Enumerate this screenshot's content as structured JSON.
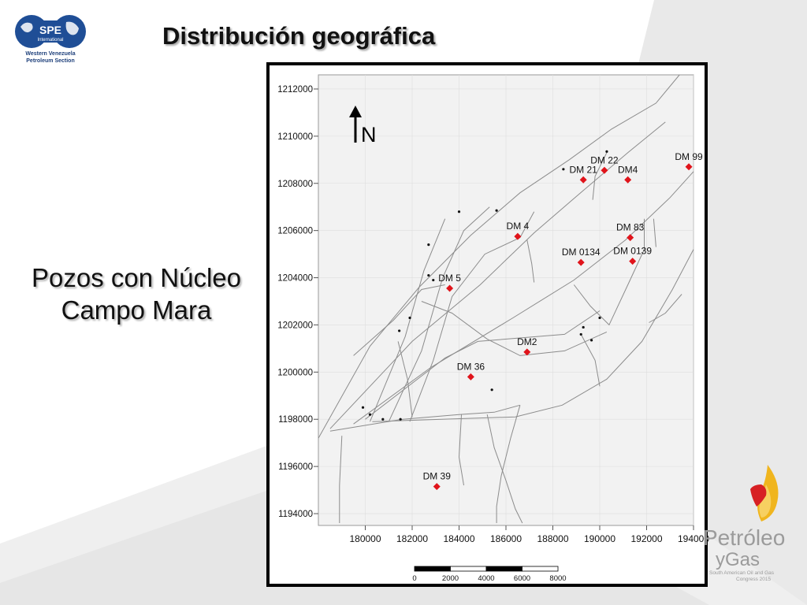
{
  "slide": {
    "title": "Distribución geográfica",
    "subtitle_lines": [
      "Pozos con Núcleo",
      "Campo Mara"
    ]
  },
  "logo_spe": {
    "text": "SPE",
    "sub_text": "International",
    "caption_lines": [
      "Western Venezuela",
      "Petroleum Section"
    ]
  },
  "logo_congress": {
    "line1": "Petróleo",
    "line2": "yGas",
    "caption_lines": [
      "South American Oil and Gas",
      "Congress 2015"
    ]
  },
  "map": {
    "north_label": "N",
    "x_axis_ticks": [
      180000,
      182000,
      184000,
      186000,
      188000,
      190000,
      192000,
      194000
    ],
    "y_axis_ticks": [
      1212000,
      1210000,
      1208000,
      1206000,
      1204000,
      1202000,
      1200000,
      1198000,
      1196000,
      1194000
    ],
    "x_range": [
      178000,
      194000
    ],
    "y_range": [
      1193500,
      1212600
    ],
    "scale_bar": {
      "labels": [
        "0",
        "2000",
        "4000",
        "6000",
        "8000"
      ]
    },
    "wells": [
      {
        "name": "DM 99",
        "x": 193800,
        "y": 1208700
      },
      {
        "name": "DM 22",
        "x": 190200,
        "y": 1208550
      },
      {
        "name": "DM 21",
        "x": 189300,
        "y": 1208150
      },
      {
        "name": "DM4",
        "x": 191200,
        "y": 1208150
      },
      {
        "name": "DM  4",
        "x": 186500,
        "y": 1205750
      },
      {
        "name": "DM 83",
        "x": 191300,
        "y": 1205700
      },
      {
        "name": "DM 0134",
        "x": 189200,
        "y": 1204650
      },
      {
        "name": "DM 0139",
        "x": 191400,
        "y": 1204700
      },
      {
        "name": "DM  5",
        "x": 183600,
        "y": 1203550
      },
      {
        "name": "DM2",
        "x": 186900,
        "y": 1200850
      },
      {
        "name": "DM 36",
        "x": 184500,
        "y": 1199800
      },
      {
        "name": "DM 39",
        "x": 183050,
        "y": 1195150
      }
    ],
    "minor_wells": [
      {
        "x": 184000,
        "y": 1206800
      },
      {
        "x": 185600,
        "y": 1206850
      },
      {
        "x": 182700,
        "y": 1205400
      },
      {
        "x": 188450,
        "y": 1208600
      },
      {
        "x": 190300,
        "y": 1209350
      },
      {
        "x": 182700,
        "y": 1204100
      },
      {
        "x": 182900,
        "y": 1203900
      },
      {
        "x": 181900,
        "y": 1202300
      },
      {
        "x": 181450,
        "y": 1201750
      },
      {
        "x": 189300,
        "y": 1201900
      },
      {
        "x": 189200,
        "y": 1201600
      },
      {
        "x": 190000,
        "y": 1202300
      },
      {
        "x": 189650,
        "y": 1201350
      },
      {
        "x": 185400,
        "y": 1199250
      },
      {
        "x": 179900,
        "y": 1198500
      },
      {
        "x": 180200,
        "y": 1198200
      },
      {
        "x": 180750,
        "y": 1198000
      },
      {
        "x": 181500,
        "y": 1198000
      }
    ],
    "faults": [
      [
        [
          178000,
          1197200
        ],
        [
          180200,
          1201100
        ],
        [
          182300,
          1203600
        ],
        [
          184500,
          1205800
        ],
        [
          186600,
          1207600
        ],
        [
          188700,
          1209000
        ],
        [
          190500,
          1210300
        ],
        [
          192400,
          1211400
        ],
        [
          193400,
          1212600
        ]
      ],
      [
        [
          178500,
          1197600
        ],
        [
          182000,
          1201300
        ],
        [
          184900,
          1203700
        ],
        [
          187200,
          1205900
        ],
        [
          189300,
          1207700
        ],
        [
          191200,
          1209300
        ],
        [
          192800,
          1210600
        ]
      ],
      [
        [
          179500,
          1197800
        ],
        [
          182800,
          1200200
        ],
        [
          186300,
          1202300
        ],
        [
          188900,
          1203900
        ],
        [
          191100,
          1205600
        ],
        [
          193000,
          1207400
        ],
        [
          194000,
          1208500
        ]
      ],
      [
        [
          180000,
          1198000
        ],
        [
          183400,
          1200600
        ],
        [
          184800,
          1201300
        ],
        [
          188500,
          1201600
        ],
        [
          190000,
          1202600
        ]
      ],
      [
        [
          180300,
          1197900
        ],
        [
          186400,
          1198100
        ],
        [
          188400,
          1198600
        ],
        [
          190300,
          1199700
        ],
        [
          191800,
          1201300
        ],
        [
          193100,
          1203500
        ],
        [
          194000,
          1205200
        ]
      ],
      [
        [
          178500,
          1197500
        ],
        [
          181600,
          1198000
        ],
        [
          184000,
          1198200
        ],
        [
          185500,
          1198300
        ],
        [
          186600,
          1198600
        ]
      ],
      [
        [
          180200,
          1197900
        ],
        [
          181700,
          1201500
        ],
        [
          182500,
          1204300
        ],
        [
          183400,
          1206500
        ]
      ],
      [
        [
          181000,
          1197900
        ],
        [
          182400,
          1200900
        ],
        [
          183300,
          1204000
        ],
        [
          184200,
          1206000
        ],
        [
          185300,
          1207000
        ]
      ],
      [
        [
          181900,
          1197900
        ],
        [
          182900,
          1200500
        ],
        [
          183700,
          1203200
        ],
        [
          185100,
          1205000
        ],
        [
          186600,
          1205700
        ],
        [
          187200,
          1206800
        ]
      ],
      [
        [
          182400,
          1203000
        ],
        [
          183700,
          1202500
        ],
        [
          185200,
          1201400
        ],
        [
          186600,
          1200700
        ],
        [
          188500,
          1200900
        ],
        [
          190300,
          1201700
        ]
      ],
      [
        [
          179500,
          1200700
        ],
        [
          181200,
          1202200
        ],
        [
          182400,
          1203500
        ],
        [
          183400,
          1203700
        ]
      ],
      [
        [
          188900,
          1203700
        ],
        [
          189600,
          1202800
        ],
        [
          190400,
          1202000
        ],
        [
          191200,
          1203700
        ],
        [
          191900,
          1205200
        ],
        [
          191900,
          1206500
        ]
      ],
      [
        [
          190000,
          1199400
        ],
        [
          189800,
          1200500
        ],
        [
          189200,
          1201600
        ]
      ],
      [
        [
          185200,
          1198200
        ],
        [
          185500,
          1196800
        ],
        [
          186000,
          1195400
        ],
        [
          186400,
          1194200
        ],
        [
          186700,
          1193600
        ]
      ],
      [
        [
          186600,
          1198600
        ],
        [
          186200,
          1197200
        ],
        [
          185800,
          1195600
        ],
        [
          185600,
          1194300
        ],
        [
          185600,
          1193600
        ]
      ],
      [
        [
          179000,
          1197300
        ],
        [
          178900,
          1195200
        ],
        [
          178900,
          1193600
        ]
      ],
      [
        [
          181400,
          1201300
        ],
        [
          181800,
          1199700
        ],
        [
          182000,
          1198100
        ]
      ],
      [
        [
          184100,
          1198200
        ],
        [
          184000,
          1196400
        ],
        [
          184200,
          1195200
        ]
      ],
      [
        [
          187200,
          1203800
        ],
        [
          187100,
          1204600
        ],
        [
          186900,
          1205600
        ]
      ],
      [
        [
          189700,
          1207300
        ],
        [
          189800,
          1208300
        ],
        [
          190300,
          1209300
        ]
      ],
      [
        [
          192100,
          1202100
        ],
        [
          192800,
          1202500
        ],
        [
          193500,
          1203300
        ]
      ],
      [
        [
          192300,
          1206500
        ],
        [
          192400,
          1205300
        ]
      ]
    ]
  }
}
